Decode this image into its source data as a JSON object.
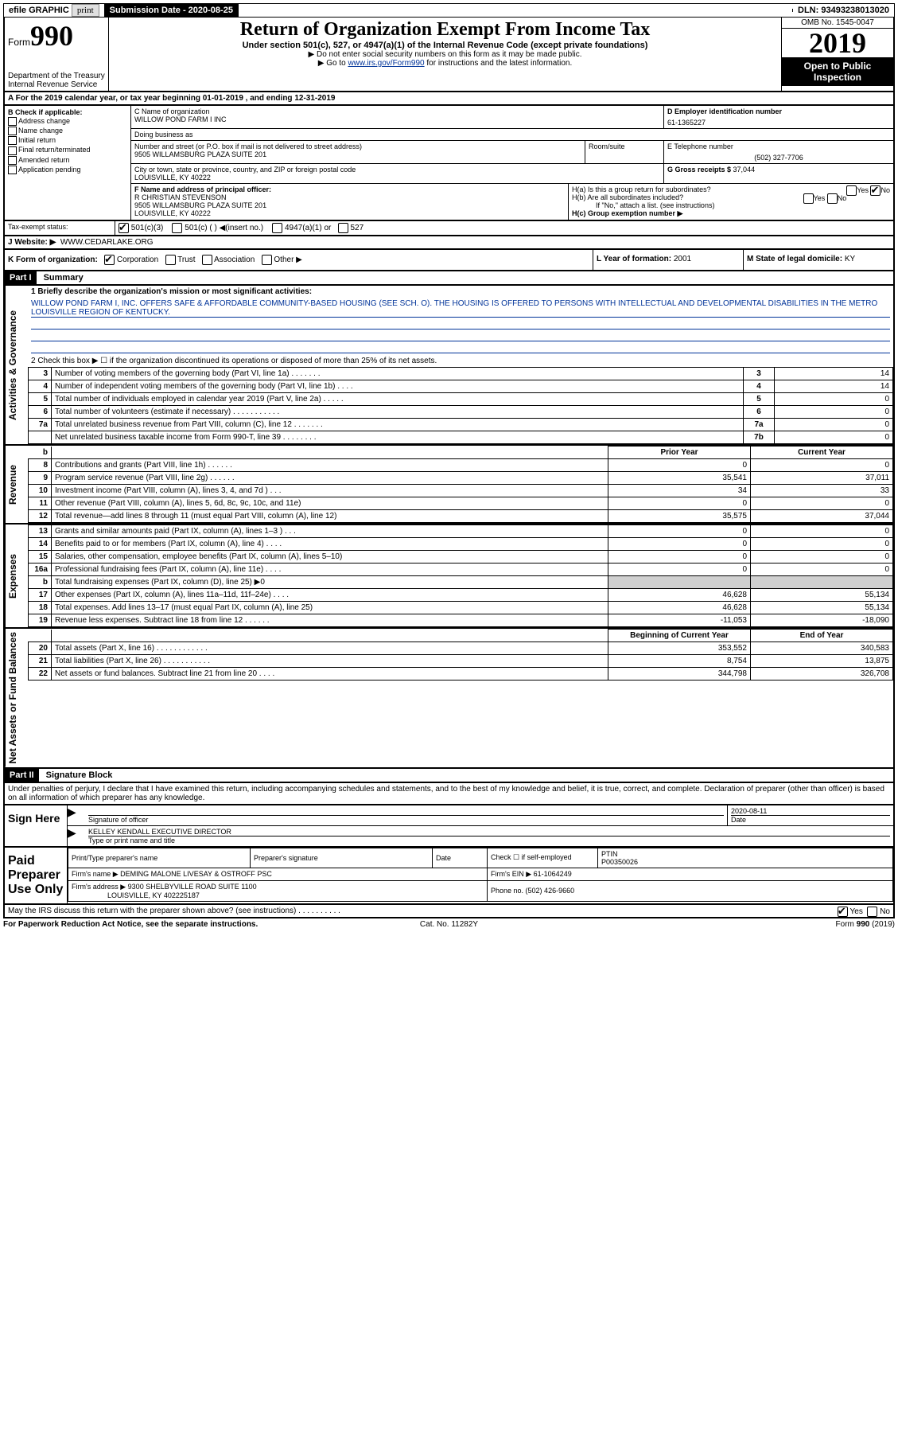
{
  "topbar": {
    "efile": "efile GRAPHIC",
    "print": "print",
    "sub_label": "Submission Date - ",
    "sub_date": "2020-08-25",
    "dln_label": "DLN: ",
    "dln": "93493238013020"
  },
  "header": {
    "form": "Form",
    "form_num": "990",
    "dept": "Department of the Treasury\nInternal Revenue Service",
    "title": "Return of Organization Exempt From Income Tax",
    "sub": "Under section 501(c), 527, or 4947(a)(1) of the Internal Revenue Code (except private foundations)",
    "instr1": "▶ Do not enter social security numbers on this form as it may be made public.",
    "instr2": "▶ Go to ",
    "instr2_link": "www.irs.gov/Form990",
    "instr2_after": " for instructions and the latest information.",
    "omb": "OMB No. 1545-0047",
    "year": "2019",
    "inspect": "Open to Public Inspection"
  },
  "rowA": "A For the 2019 calendar year, or tax year beginning 01-01-2019    , and ending 12-31-2019",
  "checkboxes": {
    "header": "B Check if applicable:",
    "items": [
      "Address change",
      "Name change",
      "Initial return",
      "Final return/terminated",
      "Amended return",
      "Application pending"
    ]
  },
  "org": {
    "name_label": "C Name of organization",
    "name": "WILLOW POND FARM I INC",
    "dba_label": "Doing business as",
    "dba": "",
    "addr_label": "Number and street (or P.O. box if mail is not delivered to street address)",
    "suite_label": "Room/suite",
    "addr": "9505 WILLAMSBURG PLAZA SUITE 201",
    "city_label": "City or town, state or province, country, and ZIP or foreign postal code",
    "city": "LOUISVILLE, KY  40222",
    "ein_label": "D Employer identification number",
    "ein": "61-1365227",
    "phone_label": "E Telephone number",
    "phone": "(502) 327-7706",
    "gross_label": "G Gross receipts $ ",
    "gross": "37,044",
    "officer_label": "F  Name and address of principal officer:",
    "officer": "R CHRISTIAN STEVENSON\n9505 WILLAMSBURG PLAZA SUITE 201\nLOUISVILLE, KY  40222",
    "ha": "H(a)  Is this a group return for subordinates?",
    "hb": "H(b)  Are all subordinates included?",
    "hb_note": "If \"No,\" attach a list. (see instructions)",
    "hc": "H(c)  Group exemption number ▶"
  },
  "tax": {
    "label": "Tax-exempt status:",
    "opts": [
      "501(c)(3)",
      "501(c) (  ) ◀(insert no.)",
      "4947(a)(1) or",
      "527"
    ]
  },
  "website": {
    "label": "J   Website: ▶",
    "url": "WWW.CEDARLAKE.ORG"
  },
  "rowK": {
    "k": "K Form of organization:",
    "opts": [
      "Corporation",
      "Trust",
      "Association",
      "Other ▶"
    ],
    "l": "L Year of formation: ",
    "l_val": "2001",
    "m": "M State of legal domicile: ",
    "m_val": "KY"
  },
  "part1": {
    "header": "Part I",
    "title": "Summary",
    "vlabel1": "Activities & Governance",
    "vlabel2": "Revenue",
    "vlabel3": "Expenses",
    "vlabel4": "Net Assets or Fund Balances",
    "line1": "1  Briefly describe the organization's mission or most significant activities:",
    "mission": "WILLOW POND FARM I, INC. OFFERS SAFE & AFFORDABLE COMMUNITY-BASED HOUSING (SEE SCH. O). THE HOUSING IS OFFERED TO PERSONS WITH INTELLECTUAL AND DEVELOPMENTAL DISABILITIES IN THE METRO LOUISVILLE REGION OF KENTUCKY.",
    "line2": "2   Check this box ▶ ☐  if the organization discontinued its operations or disposed of more than 25% of its net assets.",
    "gov_rows": [
      {
        "n": "3",
        "t": "Number of voting members of the governing body (Part VI, line 1a)   .    .    .    .    .    .    .",
        "b": "3",
        "v": "14"
      },
      {
        "n": "4",
        "t": "Number of independent voting members of the governing body (Part VI, line 1b)   .    .    .    .",
        "b": "4",
        "v": "14"
      },
      {
        "n": "5",
        "t": "Total number of individuals employed in calendar year 2019 (Part V, line 2a)   .    .    .    .    .",
        "b": "5",
        "v": "0"
      },
      {
        "n": "6",
        "t": "Total number of volunteers (estimate if necessary)    .    .    .    .    .    .    .    .    .    .    .",
        "b": "6",
        "v": "0"
      },
      {
        "n": "7a",
        "t": "Total unrelated business revenue from Part VIII, column (C), line 12   .    .    .    .    .    .    .",
        "b": "7a",
        "v": "0"
      },
      {
        "n": "",
        "t": "Net unrelated business taxable income from Form 990-T, line 39   .    .    .    .    .    .    .    .",
        "b": "7b",
        "v": "0"
      }
    ],
    "pyr_hdr": "Prior Year",
    "cyr_hdr": "Current Year",
    "rev_rows": [
      {
        "n": "8",
        "t": "Contributions and grants (Part VIII, line 1h)    .     .     .     .     .     .",
        "p": "0",
        "c": "0"
      },
      {
        "n": "9",
        "t": "Program service revenue (Part VIII, line 2g)    .     .     .     .     .     .",
        "p": "35,541",
        "c": "37,011"
      },
      {
        "n": "10",
        "t": "Investment income (Part VIII, column (A), lines 3, 4, and 7d )    .     .     .",
        "p": "34",
        "c": "33"
      },
      {
        "n": "11",
        "t": "Other revenue (Part VIII, column (A), lines 5, 6d, 8c, 9c, 10c, and 11e)",
        "p": "0",
        "c": "0"
      },
      {
        "n": "12",
        "t": "Total revenue—add lines 8 through 11 (must equal Part VIII, column (A), line 12)",
        "p": "35,575",
        "c": "37,044"
      }
    ],
    "exp_rows": [
      {
        "n": "13",
        "t": "Grants and similar amounts paid (Part IX, column (A), lines 1–3 )   .    .    .",
        "p": "0",
        "c": "0"
      },
      {
        "n": "14",
        "t": "Benefits paid to or for members (Part IX, column (A), line 4)    .    .    .    .",
        "p": "0",
        "c": "0"
      },
      {
        "n": "15",
        "t": "Salaries, other compensation, employee benefits (Part IX, column (A), lines 5–10)",
        "p": "0",
        "c": "0"
      },
      {
        "n": "16a",
        "t": "Professional fundraising fees (Part IX, column (A), line 11e)   .    .    .    .",
        "p": "0",
        "c": "0"
      },
      {
        "n": "b",
        "t": "Total fundraising expenses (Part IX, column (D), line 25) ▶0",
        "p": "",
        "c": "",
        "shaded": true
      },
      {
        "n": "17",
        "t": "Other expenses (Part IX, column (A), lines 11a–11d, 11f–24e)   .    .    .    .",
        "p": "46,628",
        "c": "55,134"
      },
      {
        "n": "18",
        "t": "Total expenses. Add lines 13–17 (must equal Part IX, column (A), line 25)",
        "p": "46,628",
        "c": "55,134"
      },
      {
        "n": "19",
        "t": "Revenue less expenses. Subtract line 18 from line 12   .    .    .    .    .    .",
        "p": "-11,053",
        "c": "-18,090"
      }
    ],
    "boy_hdr": "Beginning of Current Year",
    "eoy_hdr": "End of Year",
    "net_rows": [
      {
        "n": "20",
        "t": "Total assets (Part X, line 16)   .    .    .    .    .    .    .    .    .    .    .    .",
        "p": "353,552",
        "c": "340,583"
      },
      {
        "n": "21",
        "t": "Total liabilities (Part X, line 26)   .    .    .    .    .    .    .    .    .    .    .",
        "p": "8,754",
        "c": "13,875"
      },
      {
        "n": "22",
        "t": "Net assets or fund balances. Subtract line 21 from line 20   .    .    .    .",
        "p": "344,798",
        "c": "326,708"
      }
    ]
  },
  "part2": {
    "header": "Part II",
    "title": "Signature Block",
    "penalties": "Under penalties of perjury, I declare that I have examined this return, including accompanying schedules and statements, and to the best of my knowledge and belief, it is true, correct, and complete. Declaration of preparer (other than officer) is based on all information of which preparer has any knowledge.",
    "sign_here": "Sign Here",
    "sig_officer": "Signature of officer",
    "sig_date": "2020-08-11",
    "date_lbl": "Date",
    "name_title": "KELLEY KENDALL  EXECUTIVE DIRECTOR",
    "type_name": "Type or print name and title",
    "paid": "Paid Preparer Use Only",
    "prep_name_lbl": "Print/Type preparer's name",
    "prep_sig_lbl": "Preparer's signature",
    "date": "Date",
    "check_self": "Check ☐ if self-employed",
    "ptin_lbl": "PTIN",
    "ptin": "P00350026",
    "firm_name_lbl": "Firm's name    ▶",
    "firm_name": "DEMING MALONE LIVESAY & OSTROFF PSC",
    "firm_ein_lbl": "Firm's EIN ▶",
    "firm_ein": "61-1064249",
    "firm_addr_lbl": "Firm's address ▶",
    "firm_addr": "9300 SHELBYVILLE ROAD SUITE 1100",
    "firm_city": "LOUISVILLE, KY  402225187",
    "firm_phone_lbl": "Phone no. ",
    "firm_phone": "(502) 426-9660",
    "discuss": "May the IRS discuss this return with the preparer shown above? (see instructions)    .    .    .    .    .    .    .    .    .    .",
    "yes": "Yes",
    "no": "No"
  },
  "footer": {
    "pra": "For Paperwork Reduction Act Notice, see the separate instructions.",
    "cat": "Cat. No. 11282Y",
    "form": "Form 990 (2019)"
  }
}
